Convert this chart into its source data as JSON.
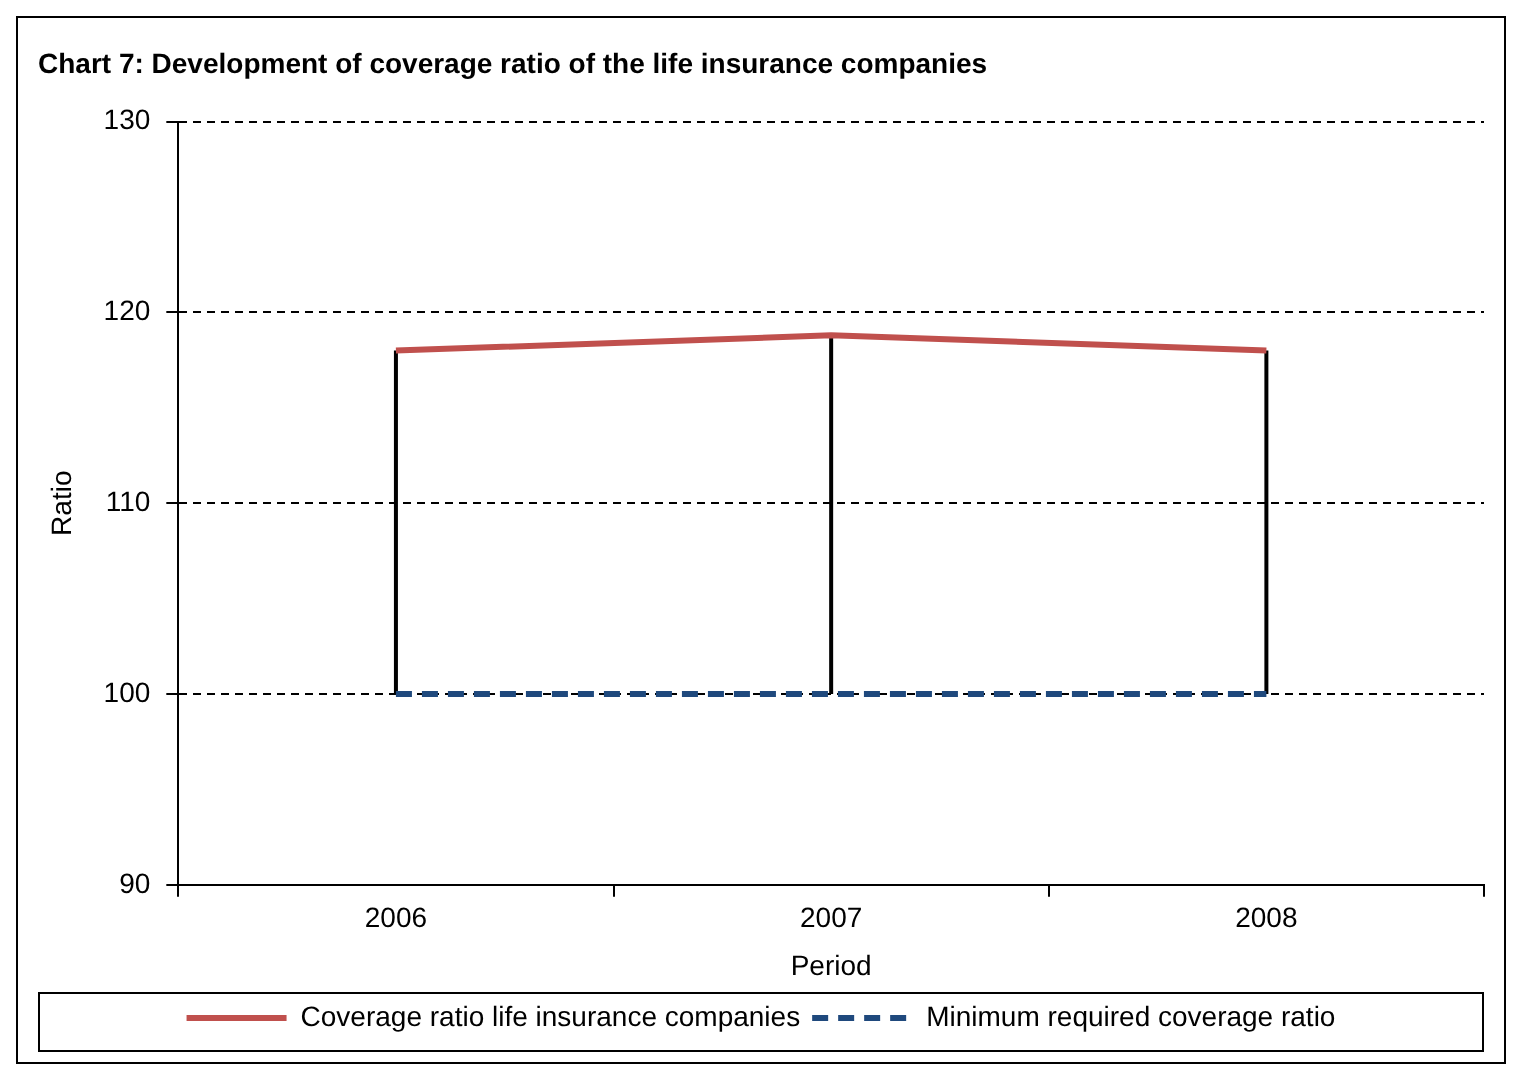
{
  "chart_data": {
    "type": "line",
    "title": "Chart 7: Development of coverage ratio of the life insurance companies",
    "xlabel": "Period",
    "ylabel": "Ratio",
    "categories": [
      "2006",
      "2007",
      "2008"
    ],
    "series": [
      {
        "name": "Coverage ratio life insurance companies",
        "color": "#c0504d",
        "values": [
          118,
          118.8,
          118
        ],
        "errors": [
          [
            100,
            118
          ],
          [
            100,
            118.8
          ],
          [
            100,
            118
          ]
        ],
        "line_style": "solid"
      },
      {
        "name": "Minimum required coverage ratio",
        "color": "#1f497d",
        "values": [
          100,
          100,
          100
        ],
        "line_style": "dashed"
      }
    ],
    "ylim": [
      90,
      130
    ],
    "yticks": [
      90,
      100,
      110,
      120,
      130
    ],
    "grid": "y",
    "legend": "bottom",
    "marker": "none"
  }
}
